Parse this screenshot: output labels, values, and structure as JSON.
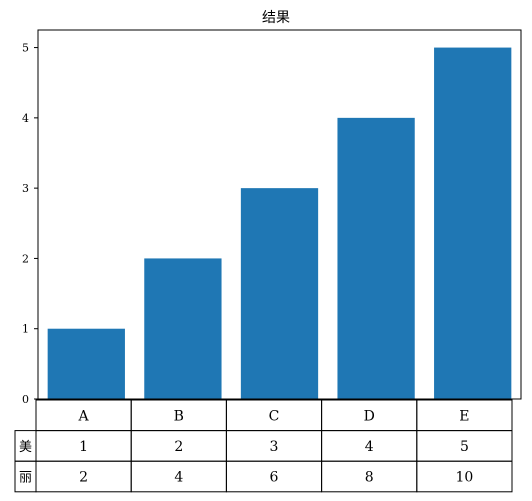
{
  "chart_data": {
    "type": "bar",
    "title": "结果",
    "categories": [
      "A",
      "B",
      "C",
      "D",
      "E"
    ],
    "series": [
      {
        "values": [
          1,
          2,
          3,
          4,
          5
        ],
        "color": "#1f77b4"
      }
    ],
    "ylim": [
      0,
      5.25
    ],
    "yticks": [
      0,
      1,
      2,
      3,
      4,
      5
    ],
    "xlabel": "",
    "ylabel": "",
    "grid": false,
    "table": {
      "col_labels": [
        "A",
        "B",
        "C",
        "D",
        "E"
      ],
      "rows": [
        {
          "label": "美",
          "values": [
            1,
            2,
            3,
            4,
            5
          ]
        },
        {
          "label": "丽",
          "values": [
            2,
            4,
            6,
            8,
            10
          ]
        }
      ]
    }
  }
}
